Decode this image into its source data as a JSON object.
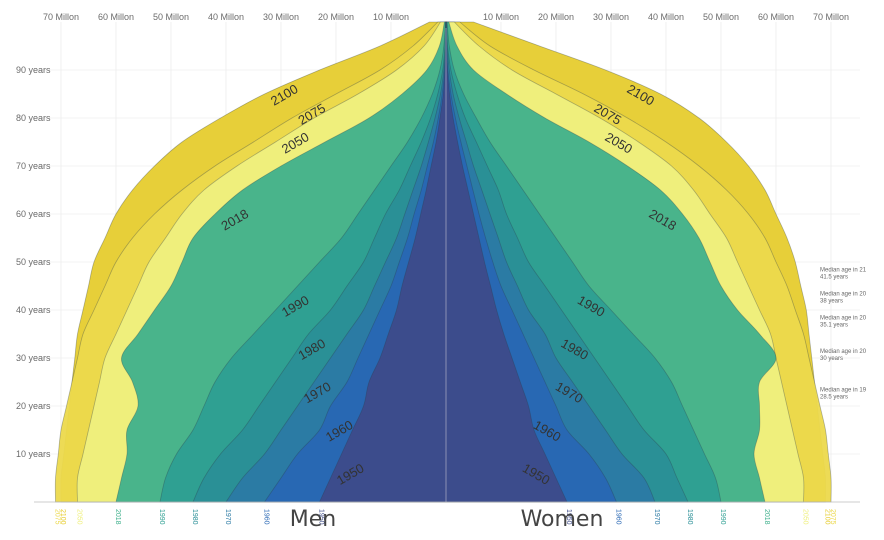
{
  "chart_data": {
    "type": "area",
    "title": "",
    "left_label": "Men",
    "right_label": "Women",
    "x_ticks_left": [
      "70 Millon",
      "60 Millon",
      "50 Millon",
      "40 Millon",
      "30 Millon",
      "20 Millon",
      "10 Millon"
    ],
    "x_ticks_right": [
      "10 Millon",
      "20 Millon",
      "30 Millon",
      "40 Millon",
      "50 Millon",
      "60 Millon",
      "70 Millon"
    ],
    "y_ticks": [
      "90 years",
      "80 years",
      "70 years",
      "60 years",
      "50 years",
      "40 years",
      "30 years",
      "20 years",
      "10 years"
    ],
    "ylim": [
      0,
      100
    ],
    "xlim_millions": [
      0,
      75
    ],
    "ages": [
      0,
      5,
      10,
      15,
      20,
      25,
      30,
      35,
      40,
      45,
      50,
      55,
      60,
      65,
      70,
      75,
      80,
      85,
      90,
      95,
      100
    ],
    "series": [
      {
        "name": "2100",
        "color": "#e6cc2e",
        "men": [
          70,
          70,
          69.5,
          69,
          68.5,
          68,
          67.5,
          67,
          66,
          65,
          64,
          62,
          60,
          57,
          53,
          48,
          41,
          33,
          23,
          12,
          3
        ],
        "women": [
          69,
          69,
          68.5,
          68,
          67.5,
          67,
          66.5,
          66,
          65.5,
          64.5,
          63.5,
          62,
          60,
          58,
          55,
          51,
          46,
          39,
          29,
          17,
          5
        ]
      },
      {
        "name": "2075",
        "color": "#ecd94c",
        "men": [
          71,
          71,
          70.5,
          70,
          69,
          68,
          67,
          66,
          64,
          62,
          60,
          57,
          53,
          48,
          42,
          35,
          28,
          20,
          12,
          6,
          1.5
        ],
        "women": [
          70,
          70,
          69.5,
          69,
          68,
          67,
          66,
          65,
          63.5,
          62,
          60,
          58,
          55,
          51,
          46,
          40,
          33,
          25,
          16,
          8,
          2.5
        ]
      },
      {
        "name": "2050",
        "color": "#eff07e",
        "men": [
          67,
          67,
          66,
          65,
          64,
          63,
          62,
          60,
          58,
          56,
          54,
          51,
          48,
          44,
          38,
          31,
          24,
          16,
          9,
          4,
          1
        ],
        "women": [
          65,
          65,
          64,
          63,
          62,
          61,
          60,
          59,
          57,
          55,
          53,
          51,
          48,
          45,
          41,
          35,
          28,
          20,
          12,
          6,
          1.5
        ]
      },
      {
        "name": "2018",
        "color": "#3fb08c",
        "men": [
          60,
          59,
          58,
          58,
          56,
          57,
          59,
          56,
          53,
          50,
          48,
          46,
          42,
          37,
          30,
          22,
          14,
          8,
          3.5,
          1.2,
          0.3
        ],
        "women": [
          58,
          57,
          56,
          57,
          57,
          57,
          60,
          57,
          53,
          50,
          48,
          46,
          43,
          39,
          33,
          26,
          18,
          11,
          5,
          2,
          0.5
        ]
      },
      {
        "name": "1990",
        "color": "#2e9f92",
        "men": [
          52,
          51,
          49,
          46,
          44,
          42,
          39,
          35,
          31,
          27,
          23,
          19,
          16,
          13,
          10,
          7,
          4.5,
          2.5,
          1.1,
          0.4,
          0.1
        ],
        "women": [
          50,
          49,
          47,
          45,
          43,
          41,
          38,
          34,
          30,
          26,
          23,
          20,
          17,
          14,
          11,
          8,
          5.5,
          3.2,
          1.5,
          0.6,
          0.2
        ]
      },
      {
        "name": "1980",
        "color": "#2a8f97",
        "men": [
          46,
          44,
          41,
          37,
          34,
          31,
          28,
          25,
          21,
          18,
          15,
          13,
          11,
          8.5,
          6.5,
          4.5,
          2.8,
          1.5,
          0.6,
          0.2,
          0.05
        ],
        "women": [
          44,
          42,
          40,
          36,
          33,
          30,
          27,
          24,
          21,
          18,
          15,
          13,
          11,
          9.5,
          7.5,
          5.5,
          3.5,
          2,
          0.9,
          0.3,
          0.1
        ]
      },
      {
        "name": "1970",
        "color": "#2b7aa4",
        "men": [
          40,
          37,
          33,
          30,
          27,
          24,
          21,
          18,
          15,
          13,
          11,
          9,
          7.5,
          6,
          4.5,
          3.2,
          2,
          1,
          0.4,
          0.1,
          0.02
        ],
        "women": [
          38,
          36,
          32,
          29,
          26,
          23,
          20,
          18,
          15,
          13,
          11,
          9.5,
          8,
          6.5,
          5,
          3.7,
          2.4,
          1.3,
          0.6,
          0.2,
          0.05
        ]
      },
      {
        "name": "1960",
        "color": "#2867b4",
        "men": [
          33,
          30,
          27,
          23,
          21,
          18,
          16,
          14,
          12,
          10,
          8.5,
          7,
          5.8,
          4.5,
          3.4,
          2.3,
          1.4,
          0.7,
          0.25,
          0.06,
          0.01
        ],
        "women": [
          31,
          29,
          26,
          22,
          20,
          18,
          16,
          14,
          12,
          10,
          8.5,
          7.2,
          6,
          4.9,
          3.8,
          2.7,
          1.7,
          0.9,
          0.35,
          0.1,
          0.02
        ]
      },
      {
        "name": "1950",
        "color": "#3d4b8a",
        "men": [
          23,
          21,
          19,
          17,
          15,
          14,
          12,
          10.5,
          9,
          8,
          6.8,
          5.6,
          4.6,
          3.6,
          2.7,
          1.8,
          1.1,
          0.5,
          0.18,
          0.04,
          0.01
        ],
        "women": [
          22,
          20,
          18,
          16,
          15,
          13.5,
          12,
          10.5,
          9.2,
          8.1,
          7,
          6,
          5,
          4,
          3,
          2.1,
          1.3,
          0.65,
          0.25,
          0.06,
          0.01
        ]
      }
    ],
    "line_labels_left": [
      "2100",
      "2075",
      "2050",
      "2018",
      "1990",
      "1980",
      "1970",
      "1960",
      "1950"
    ],
    "line_labels_right": [
      "2100",
      "2075",
      "2050",
      "2018",
      "1990",
      "1980",
      "1970",
      "1960",
      "1950"
    ],
    "median_notes": [
      "Median age in 21\n41.5 years",
      "Median age in 20\n38 years",
      "Median age in 20\n35.1 years",
      "Median age in 20\n30 years",
      "Median age in 19\n28.5 years"
    ],
    "baseline_labels_left": [
      "2100",
      "2075",
      "2050",
      "2018",
      "1990",
      "1980",
      "1970",
      "1960",
      "1950"
    ],
    "baseline_labels_right": [
      "1950",
      "1960",
      "1970",
      "1980",
      "1990",
      "2018",
      "2050",
      "2075",
      "2100"
    ]
  }
}
